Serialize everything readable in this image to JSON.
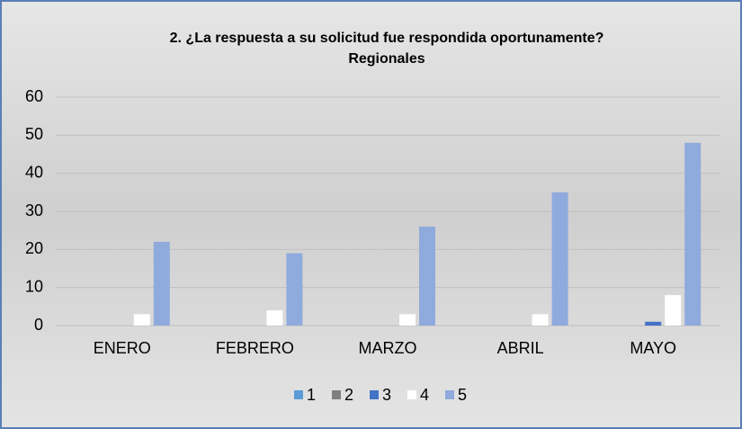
{
  "chart_data": {
    "type": "bar",
    "title": "2. ¿La respuesta a su solicitud fue respondida oportunamente?",
    "subtitle": "Regionales",
    "categories": [
      "ENERO",
      "FEBRERO",
      "MARZO",
      "ABRIL",
      "MAYO"
    ],
    "series": [
      {
        "name": "1",
        "color": "#5b9bd5",
        "values": [
          0,
          0,
          0,
          0,
          0
        ]
      },
      {
        "name": "2",
        "color": "#7f7f7f",
        "values": [
          0,
          0,
          0,
          0,
          0
        ]
      },
      {
        "name": "3",
        "color": "#4472c4",
        "values": [
          0,
          0,
          0,
          0,
          1
        ]
      },
      {
        "name": "4",
        "color": "#ffffff",
        "values": [
          3,
          4,
          3,
          3,
          8
        ]
      },
      {
        "name": "5",
        "color": "#8faadc",
        "values": [
          22,
          19,
          26,
          35,
          48
        ]
      }
    ],
    "ylim": [
      0,
      60
    ],
    "yticks": [
      0,
      10,
      20,
      30,
      40,
      50,
      60
    ],
    "grid": true,
    "legend": "bottom"
  }
}
